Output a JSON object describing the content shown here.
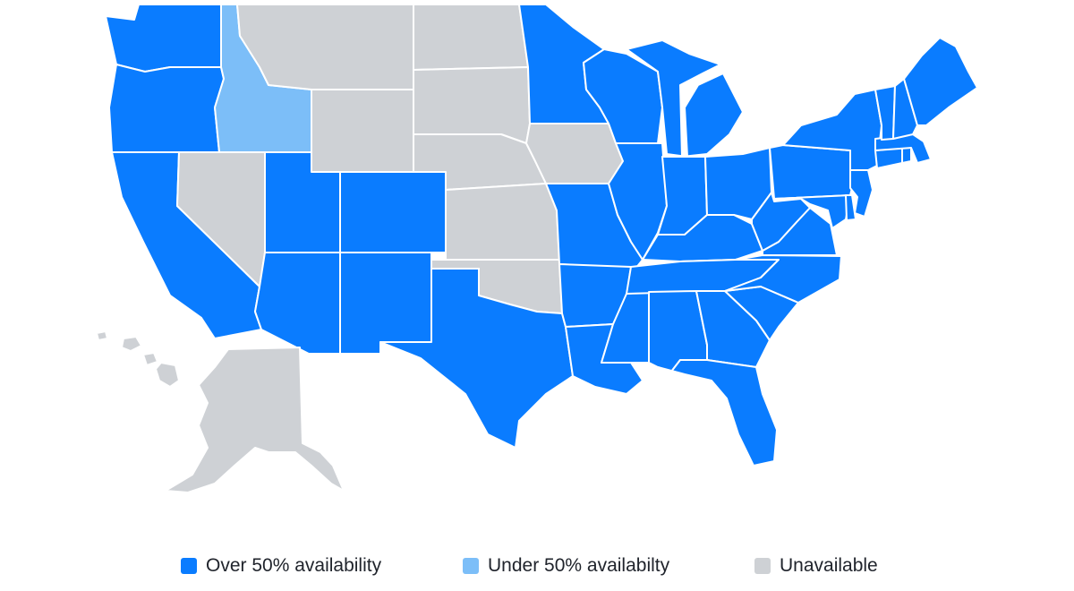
{
  "colors": {
    "over_50": "#0a7cff",
    "under_50": "#7cbef8",
    "unavailable": "#ced1d5"
  },
  "legend": [
    {
      "id": "over_50",
      "label": "Over 50% availability"
    },
    {
      "id": "under_50",
      "label": "Under 50% availabilty"
    },
    {
      "id": "unavailable",
      "label": "Unavailable"
    }
  ],
  "states": {
    "WA": "over_50",
    "OR": "over_50",
    "CA": "over_50",
    "ID": "under_50",
    "NV": "unavailable",
    "MT": "unavailable",
    "WY": "unavailable",
    "UT": "over_50",
    "AZ": "over_50",
    "CO": "over_50",
    "NM": "over_50",
    "ND": "unavailable",
    "SD": "unavailable",
    "NE": "unavailable",
    "KS": "unavailable",
    "OK": "unavailable",
    "TX": "over_50",
    "MN": "over_50",
    "IA": "unavailable",
    "MO": "over_50",
    "AR": "over_50",
    "LA": "over_50",
    "WI": "over_50",
    "IL": "over_50",
    "MS": "over_50",
    "MI": "over_50",
    "IN": "over_50",
    "KY": "over_50",
    "TN": "over_50",
    "AL": "over_50",
    "OH": "over_50",
    "GA": "over_50",
    "FL": "over_50",
    "SC": "over_50",
    "NC": "over_50",
    "VA": "over_50",
    "WV": "over_50",
    "PA": "over_50",
    "NY": "over_50",
    "MD": "over_50",
    "DE": "over_50",
    "NJ": "over_50",
    "CT": "over_50",
    "RI": "over_50",
    "MA": "over_50",
    "VT": "over_50",
    "NH": "over_50",
    "ME": "over_50",
    "AK": "unavailable",
    "HI": "unavailable"
  }
}
